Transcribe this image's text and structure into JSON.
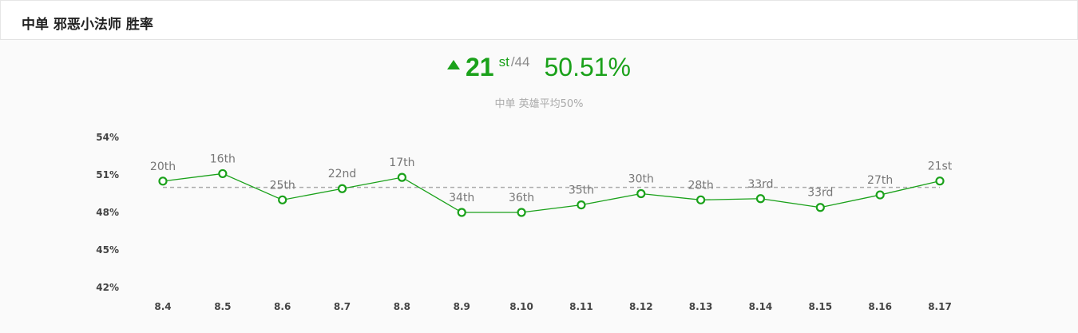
{
  "header": {
    "title": "中单 邪恶小法师 胜率"
  },
  "summary": {
    "trend_icon": "triangle-up-icon",
    "rank": "21",
    "rank_suffix": "st",
    "rank_total": "/44",
    "win_rate": "50.51%",
    "avg_note": "中单 英雄平均50%"
  },
  "colors": {
    "accent": "#1aa11a",
    "reference_line": "#aaaaaa",
    "label": "#777777"
  },
  "chart_data": {
    "type": "line",
    "title": "",
    "xlabel": "",
    "ylabel": "",
    "ylim": [
      42,
      54
    ],
    "yticks": [
      54,
      51,
      48,
      45,
      42
    ],
    "ytick_labels": [
      "54%",
      "51%",
      "48%",
      "45%",
      "42%"
    ],
    "grid": false,
    "reference_line": 50,
    "categories": [
      "8.4",
      "8.5",
      "8.6",
      "8.7",
      "8.8",
      "8.9",
      "8.10",
      "8.11",
      "8.12",
      "8.13",
      "8.14",
      "8.15",
      "8.16",
      "8.17"
    ],
    "values": [
      50.5,
      51.1,
      49.0,
      49.9,
      50.8,
      48.0,
      48.0,
      48.6,
      49.5,
      49.0,
      49.1,
      48.4,
      49.4,
      50.51
    ],
    "point_labels": [
      "20th",
      "16th",
      "25th",
      "22nd",
      "17th",
      "34th",
      "36th",
      "35th",
      "30th",
      "28th",
      "33rd",
      "33rd",
      "27th",
      "21st"
    ]
  }
}
